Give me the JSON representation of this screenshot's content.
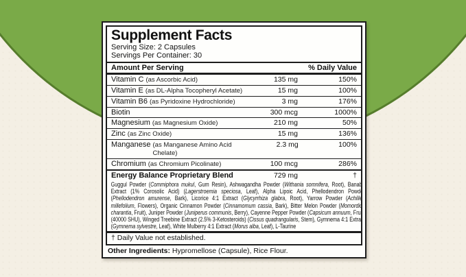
{
  "page": {
    "colors": {
      "paper": "#f4efe4",
      "circle_green": "#7aaa48",
      "circle_edge_green": "#567d2c",
      "label_background": "#fefefc",
      "label_border": "#1c1c1c",
      "text": "#111111"
    }
  },
  "label": {
    "title": "Supplement Facts",
    "serving_size": "Serving Size: 2 Capsules",
    "servings_per_container": "Servings Per Container: 30",
    "amount_header": "Amount Per Serving",
    "dv_header": "% Daily Value",
    "nutrients": [
      {
        "name": "Vitamin C",
        "form": "(as Ascorbic Acid)",
        "amount": "135 mg",
        "dv": "150%"
      },
      {
        "name": "Vitamin E",
        "form": "(as DL-Alpha Tocopheryl Acetate)",
        "amount": "15 mg",
        "dv": "100%"
      },
      {
        "name": "Vitamin B6",
        "form": "(as Pyridoxine Hydrochloride)",
        "amount": "3 mg",
        "dv": "176%"
      },
      {
        "name": "Biotin",
        "form": "",
        "amount": "300 mcg",
        "dv": "1000%"
      },
      {
        "name": "Magnesium",
        "form": "(as Magnesium Oxide)",
        "amount": "210 mg",
        "dv": "50%"
      },
      {
        "name": "Zinc",
        "form": "(as Zinc Oxide)",
        "amount": "15 mg",
        "dv": "136%"
      },
      {
        "name": "Manganese",
        "form": "(as Manganese Amino Acid Chelate)",
        "amount": "2.3 mg",
        "dv": "100%"
      },
      {
        "name": "Chromium",
        "form": "(as Chromium Picolinate)",
        "amount": "100 mcg",
        "dv": "286%"
      }
    ],
    "blend": {
      "name": "Energy Balance Proprietary Blend",
      "amount": "729 mg",
      "dv": "†",
      "description": "Guggul Powder (*Commiphora mukul*, Gum Resin), Ashwagandha Powder (*Withania somnifera*, Root), Banaba Extract (1% Corosolic Acid) (*Lagerstroemia speciosa*, Leaf), Alpha Lipoic Acid, Phellodendron Powder (*Phellodendron amurense*, Bark), Licorice 4:1 Extract (*Glycyrrhiza glabra*, Root), Yarrow Powder (*Achillea millefolium*, Flowers), Organic Cinnamon Powder (*Cinnamomum cassia*, Bark), Bitter Melon Powder (*Momordica charantia*, Fruit), Juniper Powder (*Juniperus communis*, Berry), Cayenne Pepper Powder (*Capsicum annuum*, Fruit) (40000 SHU), Winged Treebine Extract (2.5% 3-Ketosteroids) (*Cissus quadrangularis*, Stem), Gymnema 4:1 Extract (*Gymnema sylvestre*, Leaf), White Mulberry 4:1 Extract (*Morus alba*, Leaf), L-Taurine"
    },
    "footnote": "† Daily Value not established.",
    "other_ingredients": {
      "label": "Other Ingredients:",
      "value": " Hypromellose (Capsule), Rice Flour."
    }
  }
}
